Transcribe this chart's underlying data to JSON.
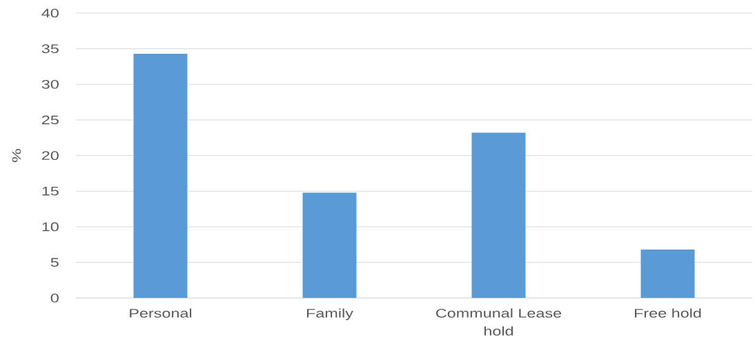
{
  "chart_data": {
    "type": "bar",
    "ylabel": "%",
    "categories": [
      "Personal",
      "Family",
      "Communal Lease hold",
      "Free hold"
    ],
    "values": [
      34.3,
      14.8,
      23.2,
      6.8
    ],
    "color": "#5b9bd5",
    "ylim": [
      0,
      40
    ],
    "yticks": [
      0,
      5,
      10,
      15,
      20,
      25,
      30,
      35,
      40
    ],
    "grid": "y"
  }
}
